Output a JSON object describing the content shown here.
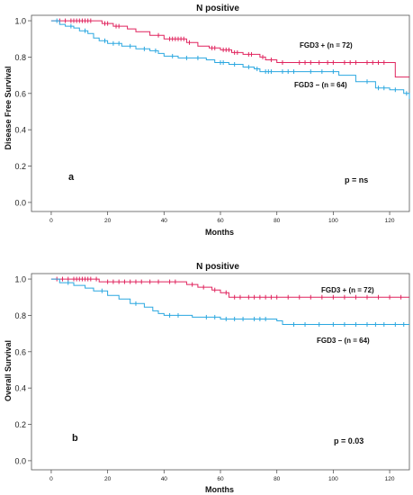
{
  "chart_data": [
    {
      "type": "line",
      "panel_label": "a",
      "title": "N positive",
      "xlabel": "Months",
      "ylabel": "Disease Free Survival",
      "xlim": [
        -7,
        127
      ],
      "ylim": [
        -0.05,
        1.03
      ],
      "xticks": [
        "0",
        "20",
        "40",
        "60",
        "80",
        "100",
        "120"
      ],
      "yticks": [
        "0.0",
        "0.2",
        "0.4",
        "0.6",
        "0.8",
        "1.0"
      ],
      "p_value": "p = ns",
      "series": [
        {
          "name": "FGD3 + (n = 72)",
          "color": "#e0245e",
          "x": [
            0,
            15,
            18,
            22,
            27,
            30,
            35,
            40,
            48,
            52,
            56,
            60,
            64,
            68,
            74,
            76,
            80,
            86,
            100,
            110,
            122,
            125,
            127
          ],
          "y": [
            1.0,
            1.0,
            0.985,
            0.97,
            0.955,
            0.94,
            0.92,
            0.9,
            0.88,
            0.86,
            0.85,
            0.84,
            0.825,
            0.815,
            0.8,
            0.785,
            0.77,
            0.77,
            0.77,
            0.77,
            0.69,
            0.69,
            0.69
          ],
          "censor_x": [
            3,
            5,
            7,
            8,
            9,
            10,
            11,
            12,
            13,
            14,
            19,
            20,
            23,
            24,
            38,
            42,
            43,
            44,
            45,
            46,
            47,
            49,
            57,
            58,
            61,
            62,
            63,
            65,
            66,
            70,
            71,
            75,
            78,
            82,
            88,
            90,
            92,
            95,
            98,
            100,
            104,
            106,
            108,
            112,
            114,
            116,
            118
          ]
        },
        {
          "name": "FGD3 − (n = 64)",
          "color": "#2aa7e0",
          "x": [
            0,
            3,
            5,
            8,
            10,
            13,
            15,
            17,
            20,
            25,
            30,
            35,
            38,
            40,
            45,
            55,
            58,
            63,
            68,
            72,
            74,
            80,
            90,
            102,
            108,
            115,
            120,
            125,
            127
          ],
          "y": [
            1.0,
            0.98,
            0.97,
            0.96,
            0.945,
            0.93,
            0.905,
            0.89,
            0.875,
            0.86,
            0.845,
            0.835,
            0.82,
            0.805,
            0.795,
            0.785,
            0.77,
            0.76,
            0.745,
            0.735,
            0.72,
            0.72,
            0.72,
            0.7,
            0.665,
            0.63,
            0.62,
            0.6,
            0.57
          ],
          "censor_x": [
            2,
            7,
            12,
            19,
            22,
            24,
            28,
            33,
            37,
            43,
            48,
            52,
            60,
            61,
            65,
            70,
            73,
            76,
            77,
            78,
            82,
            84,
            86,
            92,
            96,
            100,
            112,
            116,
            118,
            122,
            126
          ]
        }
      ]
    },
    {
      "type": "line",
      "panel_label": "b",
      "title": "N positive",
      "xlabel": "Months",
      "ylabel": "Overall Survival",
      "xlim": [
        -7,
        127
      ],
      "ylim": [
        -0.05,
        1.03
      ],
      "xticks": [
        "0",
        "20",
        "40",
        "60",
        "80",
        "100",
        "120"
      ],
      "yticks": [
        "0.0",
        "0.2",
        "0.4",
        "0.6",
        "0.8",
        "1.0"
      ],
      "p_value": "p = 0.03",
      "series": [
        {
          "name": "FGD3 + (n = 72)",
          "color": "#e0245e",
          "x": [
            0,
            15,
            17,
            45,
            48,
            52,
            57,
            60,
            63,
            127
          ],
          "y": [
            1.0,
            1.0,
            0.985,
            0.985,
            0.97,
            0.955,
            0.94,
            0.925,
            0.9,
            0.9
          ],
          "censor_x": [
            2,
            4,
            6,
            8,
            9,
            10,
            11,
            12,
            13,
            14,
            16,
            20,
            22,
            24,
            26,
            28,
            30,
            32,
            35,
            38,
            42,
            44,
            50,
            54,
            58,
            62,
            65,
            67,
            70,
            72,
            74,
            76,
            78,
            80,
            84,
            88,
            92,
            96,
            100,
            104,
            108,
            112,
            116,
            120,
            124
          ]
        },
        {
          "name": "FGD3 − (n = 64)",
          "color": "#2aa7e0",
          "x": [
            0,
            3,
            8,
            12,
            15,
            20,
            24,
            28,
            33,
            36,
            38,
            40,
            50,
            60,
            70,
            78,
            80,
            82,
            127
          ],
          "y": [
            1.0,
            0.98,
            0.965,
            0.95,
            0.935,
            0.91,
            0.89,
            0.865,
            0.845,
            0.825,
            0.81,
            0.8,
            0.79,
            0.78,
            0.78,
            0.78,
            0.77,
            0.75,
            0.75
          ],
          "censor_x": [
            6,
            18,
            30,
            42,
            45,
            55,
            58,
            62,
            65,
            68,
            72,
            74,
            76,
            86,
            90,
            95,
            100,
            104,
            108,
            112,
            115,
            118,
            122,
            125
          ]
        }
      ]
    }
  ]
}
